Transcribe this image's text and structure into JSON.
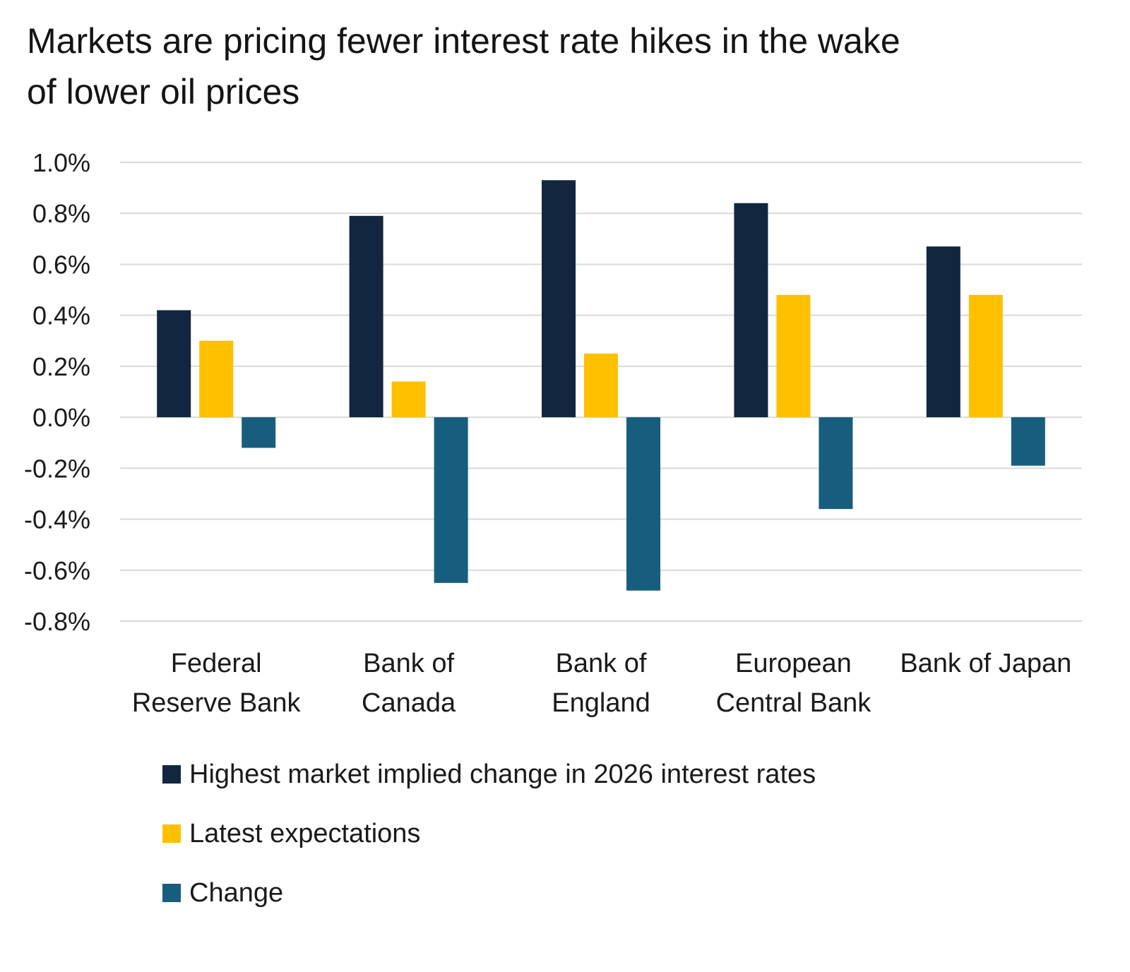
{
  "chart_data": {
    "type": "bar",
    "title": "Markets are pricing fewer interest rate hikes in the wake of lower oil prices",
    "categories": [
      [
        "Federal",
        "Reserve Bank"
      ],
      [
        "Bank of",
        "Canada"
      ],
      [
        "Bank of",
        "England"
      ],
      [
        "European",
        "Central Bank"
      ],
      [
        "Bank of Japan"
      ]
    ],
    "series": [
      {
        "name": "Highest market implied change in 2026 interest rates",
        "color": "#12263f",
        "values": [
          0.42,
          0.79,
          0.93,
          0.84,
          0.67
        ]
      },
      {
        "name": "Latest expectations",
        "color": "#ffc000",
        "values": [
          0.3,
          0.14,
          0.25,
          0.48,
          0.48
        ]
      },
      {
        "name": "Change",
        "color": "#175e7e",
        "values": [
          -0.12,
          -0.65,
          -0.68,
          -0.36,
          -0.19
        ]
      }
    ],
    "ylim": [
      -0.8,
      1.0
    ],
    "yticks": [
      1.0,
      0.8,
      0.6,
      0.4,
      0.2,
      0.0,
      -0.2,
      -0.4,
      -0.6,
      -0.8
    ],
    "ytick_labels": [
      "1.0%",
      "0.8%",
      "0.6%",
      "0.4%",
      "0.2%",
      "0.0%",
      "-0.2%",
      "-0.4%",
      "-0.6%",
      "-0.8%"
    ],
    "xlabel": "",
    "ylabel": "",
    "grid": true,
    "legend_position": "bottom"
  }
}
